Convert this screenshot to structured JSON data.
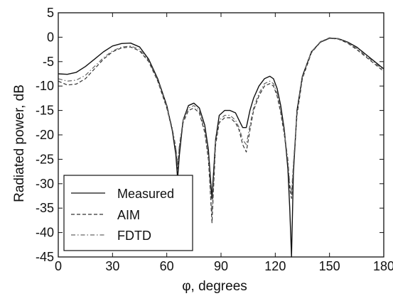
{
  "chart_data": {
    "type": "line",
    "title": "",
    "xlabel": "φ, degrees",
    "ylabel": "Radiated power, dB",
    "xlim": [
      0,
      180
    ],
    "ylim": [
      -45,
      5
    ],
    "xticks": [
      0,
      30,
      60,
      90,
      120,
      150,
      180
    ],
    "xtick_labels": [
      "0",
      "30",
      "60",
      "90",
      "120",
      "150",
      "180"
    ],
    "yticks": [
      5,
      0,
      -5,
      -10,
      -15,
      -20,
      -25,
      -30,
      -35,
      -40,
      -45
    ],
    "ytick_labels": [
      "5",
      "0",
      "-5",
      "-10",
      "-15",
      "-20",
      "-25",
      "-30",
      "-35",
      "-40",
      "-45"
    ],
    "grid": false,
    "legend_position": "bottom-left",
    "series": [
      {
        "name": "Measured",
        "style": "solid",
        "color": "#111111",
        "x": [
          0,
          5,
          10,
          15,
          20,
          25,
          30,
          35,
          40,
          45,
          50,
          55,
          60,
          63,
          65,
          66,
          67,
          69,
          72,
          75,
          78,
          81,
          83,
          84,
          85,
          86,
          87,
          89,
          92,
          95,
          98,
          100,
          102,
          104,
          106,
          108,
          111,
          114,
          117,
          119,
          121,
          123,
          125,
          127,
          128,
          129,
          130,
          132,
          135,
          140,
          145,
          150,
          155,
          160,
          165,
          170,
          175,
          180
        ],
        "y": [
          -7.5,
          -7.6,
          -7.2,
          -6.0,
          -4.5,
          -3.0,
          -1.8,
          -1.3,
          -1.2,
          -2.0,
          -4.5,
          -8.5,
          -14.0,
          -19.0,
          -24.0,
          -29.0,
          -24.0,
          -17.0,
          -14.0,
          -13.5,
          -14.5,
          -18.0,
          -23.0,
          -28.0,
          -33.0,
          -27.0,
          -21.0,
          -16.0,
          -15.0,
          -15.0,
          -15.5,
          -17.0,
          -18.5,
          -18.5,
          -15.0,
          -12.5,
          -10.0,
          -8.5,
          -8.0,
          -8.5,
          -10.5,
          -14.0,
          -19.0,
          -27.0,
          -35.0,
          -45.0,
          -28.0,
          -15.0,
          -8.0,
          -3.0,
          -1.0,
          -0.2,
          -0.3,
          -1.0,
          -2.0,
          -3.5,
          -5.0,
          -6.5
        ]
      },
      {
        "name": "AIM",
        "style": "dashed",
        "color": "#333333",
        "x": [
          0,
          5,
          10,
          15,
          20,
          25,
          30,
          35,
          40,
          45,
          50,
          55,
          60,
          63,
          65,
          66,
          67,
          69,
          72,
          75,
          78,
          81,
          83,
          84,
          85,
          86,
          87,
          89,
          92,
          95,
          98,
          100,
          102,
          104,
          106,
          108,
          111,
          114,
          117,
          119,
          121,
          123,
          125,
          127,
          128,
          129,
          130,
          132,
          135,
          140,
          145,
          150,
          155,
          160,
          165,
          170,
          175,
          180
        ],
        "y": [
          -9.0,
          -9.8,
          -9.6,
          -8.5,
          -6.5,
          -4.5,
          -3.0,
          -2.2,
          -2.0,
          -2.8,
          -5.0,
          -9.0,
          -14.5,
          -19.0,
          -23.0,
          -27.0,
          -22.5,
          -17.5,
          -15.0,
          -14.5,
          -15.5,
          -19.5,
          -25.0,
          -31.0,
          -38.0,
          -30.0,
          -22.0,
          -17.5,
          -16.5,
          -16.5,
          -17.5,
          -19.0,
          -22.0,
          -23.5,
          -19.0,
          -15.0,
          -12.0,
          -10.0,
          -9.5,
          -10.0,
          -12.0,
          -15.5,
          -20.0,
          -26.0,
          -31.0,
          -33.0,
          -27.0,
          -16.0,
          -8.5,
          -3.2,
          -1.0,
          -0.2,
          -0.4,
          -1.2,
          -2.5,
          -4.0,
          -5.5,
          -7.0
        ]
      },
      {
        "name": "FDTD",
        "style": "dashdot",
        "color": "#666666",
        "x": [
          0,
          5,
          10,
          15,
          20,
          25,
          30,
          35,
          40,
          45,
          50,
          55,
          60,
          63,
          65,
          66,
          67,
          69,
          72,
          75,
          78,
          81,
          83,
          84,
          85,
          86,
          87,
          89,
          92,
          95,
          98,
          100,
          102,
          104,
          106,
          108,
          111,
          114,
          117,
          119,
          121,
          123,
          125,
          127,
          128,
          129,
          130,
          132,
          135,
          140,
          145,
          150,
          155,
          160,
          165,
          170,
          175,
          180
        ],
        "y": [
          -8.5,
          -9.0,
          -8.8,
          -7.8,
          -6.0,
          -4.2,
          -2.8,
          -2.0,
          -1.8,
          -2.5,
          -4.8,
          -8.8,
          -14.2,
          -18.5,
          -22.5,
          -26.0,
          -22.0,
          -17.0,
          -14.5,
          -14.0,
          -15.0,
          -19.0,
          -24.0,
          -30.0,
          -36.0,
          -29.0,
          -21.5,
          -17.0,
          -16.0,
          -16.0,
          -17.0,
          -18.5,
          -21.0,
          -22.0,
          -18.0,
          -14.5,
          -11.5,
          -9.5,
          -9.0,
          -9.5,
          -11.5,
          -15.0,
          -19.5,
          -25.0,
          -30.0,
          -32.0,
          -26.0,
          -15.5,
          -8.2,
          -3.0,
          -0.9,
          -0.1,
          -0.3,
          -1.1,
          -2.3,
          -3.8,
          -5.2,
          -6.8
        ]
      }
    ]
  }
}
